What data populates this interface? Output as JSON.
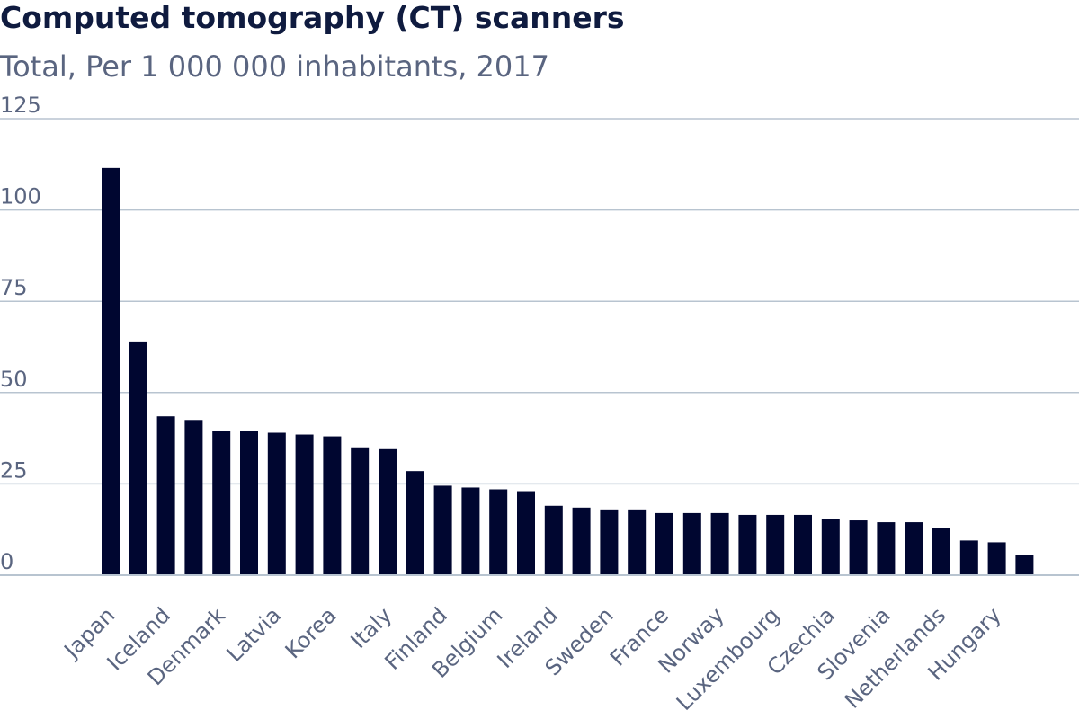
{
  "chart_data": {
    "type": "bar",
    "title": "Computed tomography (CT) scanners",
    "subtitle": "Total, Per 1 000 000 inhabitants, 2017",
    "ylim": [
      0,
      125
    ],
    "yticks": [
      0,
      25,
      50,
      75,
      100,
      125
    ],
    "grid": true,
    "bar_color": "#000630",
    "categories": [
      "Japan",
      "",
      "Iceland",
      "",
      "Denmark",
      "",
      "Latvia",
      "",
      "Korea",
      "",
      "Italy",
      "",
      "Finland",
      "",
      "Belgium",
      "",
      "Ireland",
      "",
      "Sweden",
      "",
      "France",
      "",
      "Norway",
      "",
      "Luxembourg",
      "",
      "Czechia",
      "",
      "Slovenia",
      "",
      "Netherlands",
      "",
      "Hungary",
      ""
    ],
    "values": [
      111.5,
      64,
      43.5,
      42.5,
      39.5,
      39.5,
      39,
      38.5,
      38,
      35,
      34.5,
      28.5,
      24.5,
      24,
      23.5,
      23,
      19,
      18.5,
      18,
      18,
      17,
      17,
      17,
      16.5,
      16.5,
      16.5,
      15.5,
      15,
      14.5,
      14.5,
      13,
      9.5,
      9,
      5.5
    ]
  }
}
